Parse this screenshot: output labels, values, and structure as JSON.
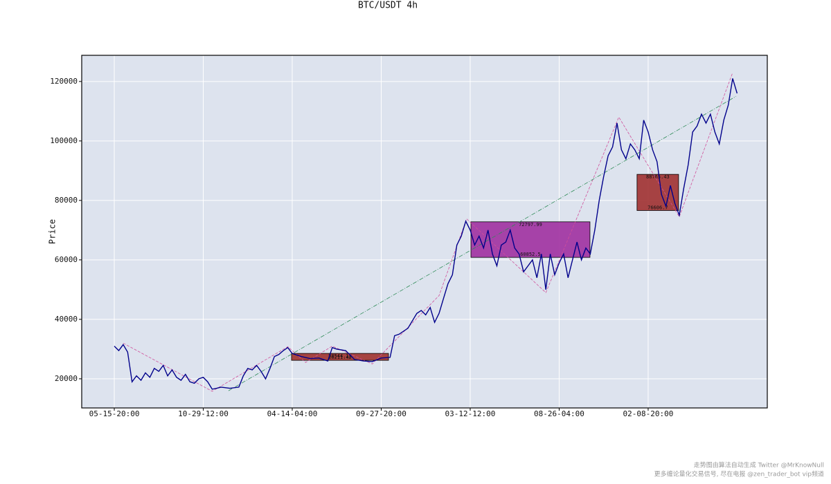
{
  "chart_data": {
    "type": "line",
    "title": "BTC/USDT 4h",
    "y_label": "Price",
    "xlim": [
      -366,
      7339
    ],
    "ylim": [
      10200,
      128800
    ],
    "xticks": [
      {
        "value": 0,
        "label": "05-15-20:00"
      },
      {
        "value": 1000,
        "label": "10-29-12:00"
      },
      {
        "value": 2000,
        "label": "04-14-04:00"
      },
      {
        "value": 3000,
        "label": "09-27-20:00"
      },
      {
        "value": 4000,
        "label": "03-12-12:00"
      },
      {
        "value": 5000,
        "label": "08-26-04:00"
      },
      {
        "value": 6000,
        "label": "02-08-20:00"
      }
    ],
    "yticks": [
      20000,
      40000,
      60000,
      80000,
      100000,
      120000
    ],
    "grid": true,
    "background": "#dde3ee",
    "x": [
      0,
      50,
      100,
      150,
      200,
      250,
      300,
      350,
      400,
      450,
      500,
      550,
      600,
      650,
      700,
      750,
      800,
      850,
      900,
      950,
      1000,
      1050,
      1100,
      1150,
      1200,
      1300,
      1400,
      1450,
      1500,
      1550,
      1600,
      1650,
      1700,
      1750,
      1800,
      1850,
      1900,
      1950,
      2000,
      2100,
      2200,
      2300,
      2400,
      2450,
      2500,
      2600,
      2700,
      2800,
      2900,
      3000,
      3100,
      3150,
      3200,
      3300,
      3400,
      3450,
      3500,
      3550,
      3600,
      3650,
      3700,
      3750,
      3800,
      3850,
      3900,
      3950,
      4000,
      4050,
      4100,
      4150,
      4200,
      4250,
      4300,
      4350,
      4400,
      4450,
      4500,
      4550,
      4600,
      4650,
      4700,
      4750,
      4800,
      4850,
      4900,
      4950,
      5000,
      5050,
      5100,
      5150,
      5200,
      5250,
      5300,
      5350,
      5400,
      5450,
      5500,
      5550,
      5600,
      5650,
      5700,
      5750,
      5800,
      5850,
      5900,
      5950,
      6000,
      6050,
      6100,
      6150,
      6200,
      6250,
      6300,
      6350,
      6400,
      6450,
      6500,
      6550,
      6600,
      6650,
      6700,
      6750,
      6800,
      6850,
      6900,
      6950,
      7000
    ],
    "series": [
      {
        "color": "#00008b",
        "values": [
          31000,
          29500,
          31500,
          29000,
          19000,
          21000,
          19500,
          22000,
          20500,
          23500,
          22500,
          24500,
          21000,
          23000,
          20500,
          19500,
          21500,
          19000,
          18500,
          20000,
          20500,
          19000,
          16500,
          16800,
          17200,
          16800,
          17200,
          21000,
          23500,
          23000,
          24500,
          22500,
          20000,
          23500,
          27500,
          28200,
          29500,
          30500,
          28500,
          27500,
          26800,
          27000,
          26000,
          30500,
          30000,
          29500,
          26500,
          26000,
          25800,
          27000,
          27200,
          34500,
          35000,
          37000,
          42000,
          43000,
          41500,
          44000,
          39000,
          42000,
          47000,
          52000,
          55000,
          65000,
          68000,
          73000,
          70000,
          65000,
          68000,
          64000,
          70000,
          62000,
          58000,
          65000,
          66000,
          70000,
          64000,
          62000,
          56000,
          58000,
          60000,
          54000,
          62000,
          50000,
          62000,
          55000,
          59000,
          62000,
          54000,
          60000,
          66000,
          60000,
          64000,
          62000,
          70000,
          80000,
          88000,
          95000,
          98000,
          106000,
          97000,
          94000,
          99000,
          97000,
          94000,
          107000,
          103000,
          97000,
          93000,
          82000,
          78000,
          85000,
          79000,
          75000,
          84000,
          92000,
          103000,
          105000,
          109000,
          106000,
          109000,
          103000,
          99000,
          107000,
          112000,
          121000,
          116000
        ]
      }
    ],
    "trend_line": {
      "color": "#2e8b57",
      "x": [
        1284,
        6988
      ],
      "values": [
        16000,
        115000
      ]
    },
    "strokes": {
      "color": "#d0509a",
      "x": [
        100,
        1100,
        1950,
        2150,
        2450,
        2900,
        3650,
        3960,
        4850,
        5670,
        6350,
        6950
      ],
      "values": [
        32000,
        15800,
        30800,
        25500,
        31000,
        25000,
        48000,
        73800,
        49000,
        108000,
        74500,
        123000
      ]
    },
    "boxes": [
      {
        "x": [
          1992,
          3082
        ],
        "high": 28544.12,
        "low": 26211.42,
        "color": "#a0322e"
      },
      {
        "x": [
          4008,
          5346
        ],
        "high": 72797.99,
        "low": 60852.5,
        "color": "#a030a0"
      },
      {
        "x": [
          5875,
          6342
        ],
        "high": 88765.43,
        "low": 76606.7,
        "color": "#a03030"
      }
    ]
  },
  "footer": [
    "走势图由算法自动生成  Twitter @MrKnowNull",
    "更多缠论量化交易信号, 尽在电报 @zen_trader_bot vip频道"
  ]
}
